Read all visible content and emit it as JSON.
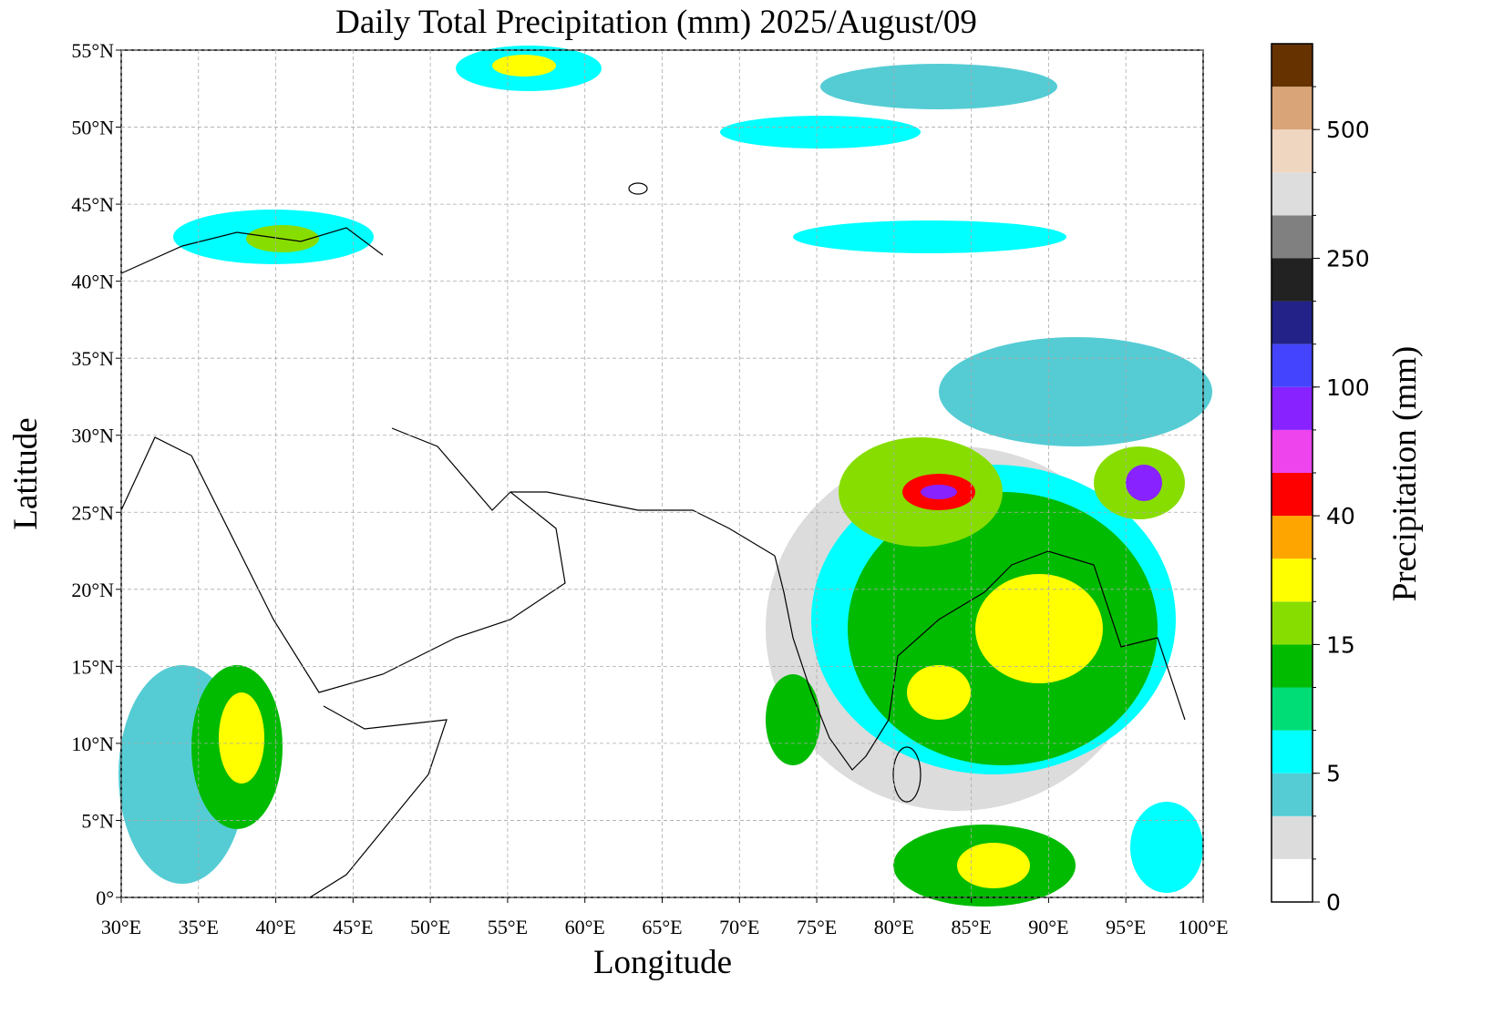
{
  "chart_data": {
    "type": "map",
    "title": "Daily Total Precipitation (mm)  2025/August/09",
    "x_label": "Longitude",
    "y_label": "Latitude",
    "xlim": [
      30,
      100
    ],
    "ylim": [
      0,
      55
    ],
    "xticks": [
      {
        "value": 30,
        "label": "30°E"
      },
      {
        "value": 35,
        "label": "35°E"
      },
      {
        "value": 40,
        "label": "40°E"
      },
      {
        "value": 45,
        "label": "45°E"
      },
      {
        "value": 50,
        "label": "50°E"
      },
      {
        "value": 55,
        "label": "55°E"
      },
      {
        "value": 60,
        "label": "60°E"
      },
      {
        "value": 65,
        "label": "65°E"
      },
      {
        "value": 70,
        "label": "70°E"
      },
      {
        "value": 75,
        "label": "75°E"
      },
      {
        "value": 80,
        "label": "80°E"
      },
      {
        "value": 85,
        "label": "85°E"
      },
      {
        "value": 90,
        "label": "90°E"
      },
      {
        "value": 95,
        "label": "95°E"
      },
      {
        "value": 100,
        "label": "100°E"
      }
    ],
    "yticks": [
      {
        "value": 0,
        "label": "0°"
      },
      {
        "value": 5,
        "label": "5°N"
      },
      {
        "value": 10,
        "label": "10°N"
      },
      {
        "value": 15,
        "label": "15°N"
      },
      {
        "value": 20,
        "label": "20°N"
      },
      {
        "value": 25,
        "label": "25°N"
      },
      {
        "value": 30,
        "label": "30°N"
      },
      {
        "value": 35,
        "label": "35°N"
      },
      {
        "value": 40,
        "label": "40°N"
      },
      {
        "value": 45,
        "label": "45°N"
      },
      {
        "value": 50,
        "label": "50°N"
      },
      {
        "value": 55,
        "label": "55°N"
      }
    ],
    "grid": true,
    "colorbar": {
      "label": "Precipitation (mm)",
      "colors": [
        "#ffffff",
        "#dcdcdc",
        "#55ccd4",
        "#00ffff",
        "#00dd77",
        "#00bb00",
        "#88dd00",
        "#ffff00",
        "#ffa500",
        "#ff0000",
        "#ee44ee",
        "#8822ff",
        "#4444ff",
        "#222288",
        "#222222",
        "#808080",
        "#dddddd",
        "#efd6c0",
        "#d8a478",
        "#663300"
      ],
      "ticks": [
        0,
        5,
        15,
        40,
        100,
        250,
        500
      ]
    }
  }
}
